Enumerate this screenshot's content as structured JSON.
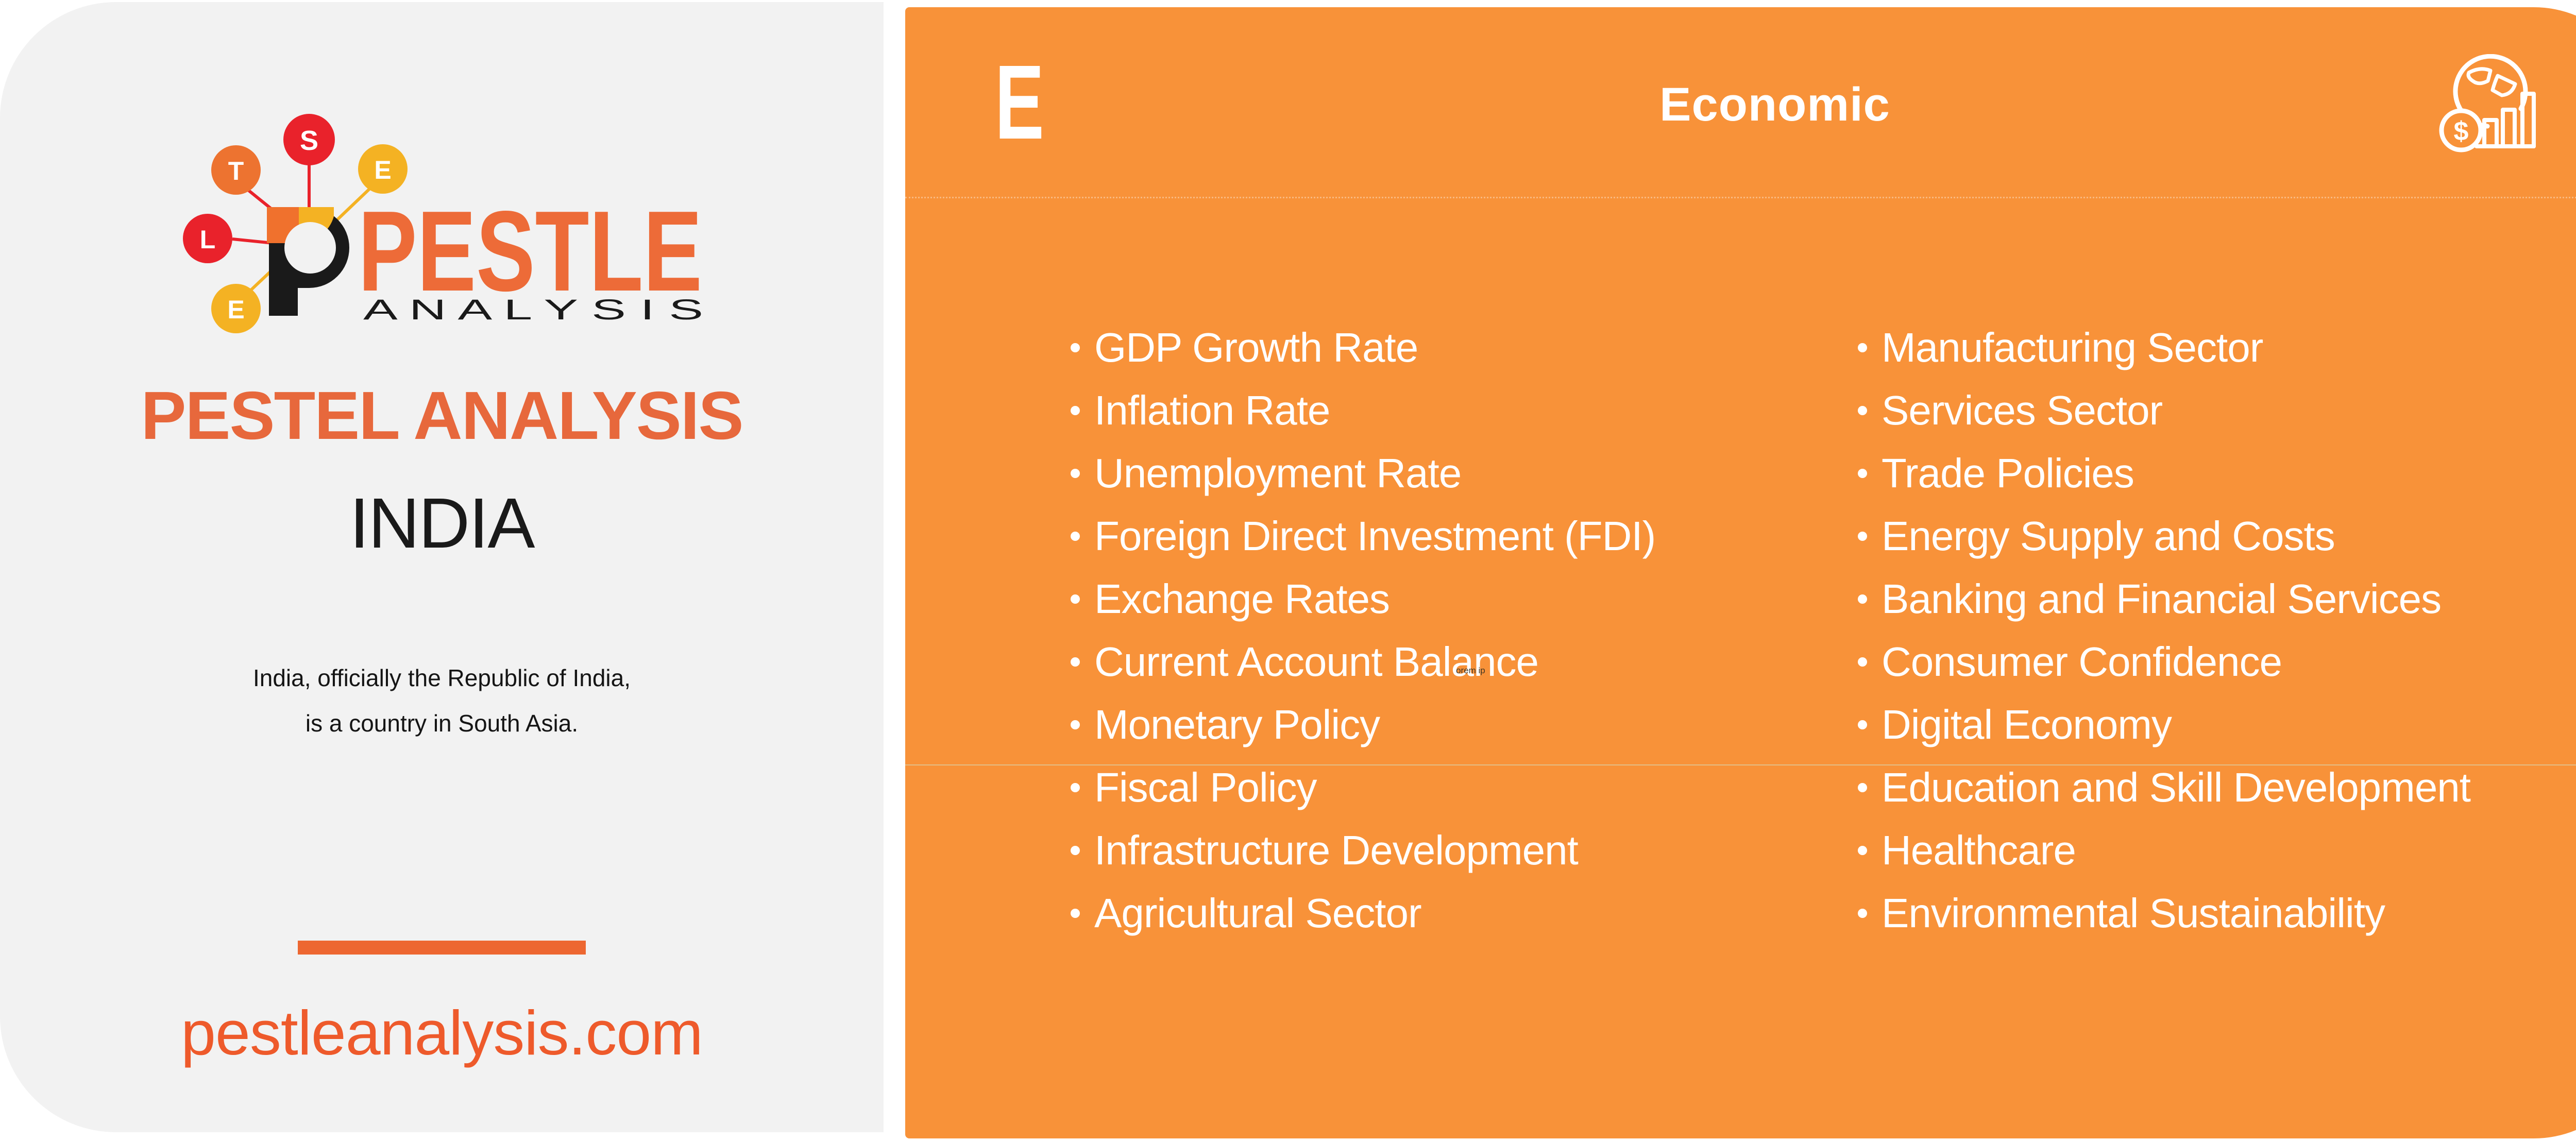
{
  "left_panel": {
    "logo": {
      "balloons": [
        {
          "letter": "T",
          "color": "#ED7330"
        },
        {
          "letter": "S",
          "color": "#E9222B"
        },
        {
          "letter": "E",
          "color": "#F4B223"
        },
        {
          "letter": "L",
          "color": "#E9222B"
        },
        {
          "letter": "E",
          "color": "#F4B223"
        }
      ],
      "wordmark": "PESTLE",
      "wordmark_sub": "A N A L Y S I S"
    },
    "title": "PESTEL ANALYSIS",
    "country": "INDIA",
    "description_line1": "India, officially the Republic of India,",
    "description_line2": "is a country in South Asia.",
    "website": "pestleanalysis.com"
  },
  "right_panel": {
    "letter": "E",
    "heading": "Economic",
    "icon": "economy-globe-dollar-bar-chart-icon",
    "currency_symbol": "$",
    "factors_left": [
      "GDP Growth Rate",
      "Inflation Rate",
      "Unemployment Rate",
      "Foreign Direct Investment (FDI)",
      "Exchange Rates",
      "Current Account Balance",
      "Monetary Policy",
      "Fiscal Policy",
      "Infrastructure Development",
      "Agricultural Sector"
    ],
    "factors_right": [
      "Manufacturing Sector",
      "Services Sector",
      "Trade Policies",
      "Energy Supply and Costs",
      "Banking and Financial Services",
      "Consumer Confidence",
      "Digital Economy",
      "Education and Skill Development",
      "Healthcare",
      "Environmental Sustainability"
    ],
    "artifact_text": "orem ip"
  },
  "colors": {
    "panel_orange": "#F89239",
    "panel_gray": "#F2F2F2",
    "brand_orange": "#ED6B38",
    "heading_orange": "#E7683C",
    "website_orange": "#EE5A2B",
    "divider_orange": "#ED6731",
    "logo_red": "#E9222B",
    "logo_orange": "#ED7330",
    "logo_yellow": "#F4B223",
    "text_dark": "#1A1A1A",
    "text_white": "#FFFFFF"
  }
}
